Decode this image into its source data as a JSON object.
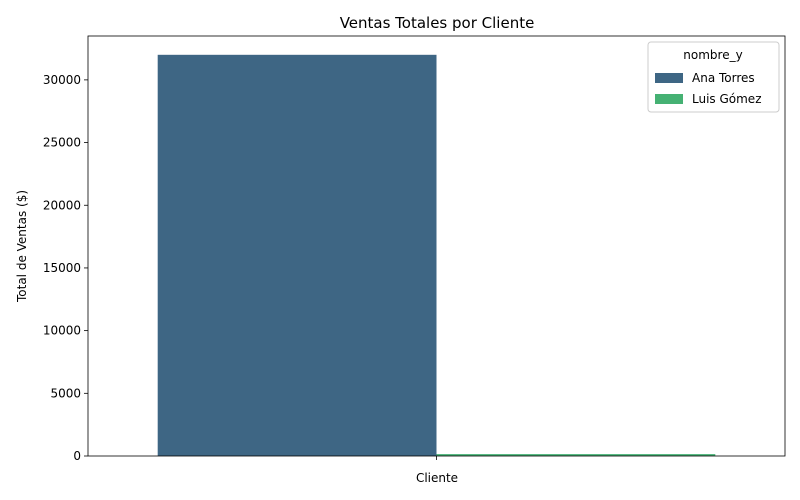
{
  "chart_data": {
    "type": "bar",
    "title": "Ventas Totales por Cliente",
    "xlabel": "Cliente",
    "ylabel": "Total de Ventas ($)",
    "categories": [
      ""
    ],
    "ylim": [
      0,
      33500
    ],
    "yticks": [
      0,
      5000,
      10000,
      15000,
      20000,
      25000,
      30000
    ],
    "grid": false,
    "legend": {
      "title": "nombre_y",
      "placement": "top-right"
    },
    "series": [
      {
        "name": "Ana Torres",
        "values": [
          32000
        ],
        "color": "#3e6684"
      },
      {
        "name": "Luis Gómez",
        "values": [
          150
        ],
        "color": "#45b173"
      }
    ]
  }
}
